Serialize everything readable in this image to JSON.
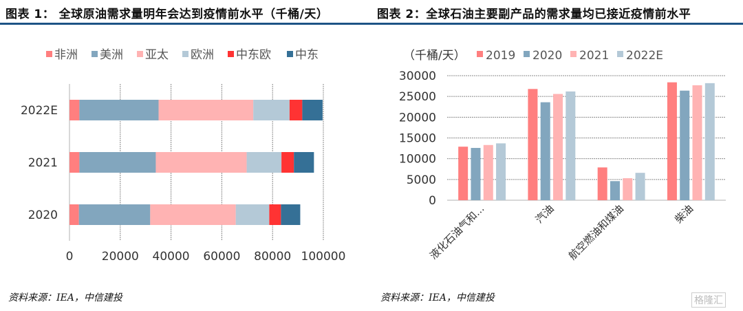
{
  "header": {
    "left_title": "图表 1： 全球原油需求量明年会达到疫情前水平（千桶/天）",
    "right_title": "图表 2：全球石油主要副产品的需求量均已接近疫情前水平"
  },
  "footer": {
    "left_source": "资料来源：IEA，中信建投",
    "right_source": "资料来源：IEA，中信建投",
    "watermark": "格隆汇"
  },
  "chart_data": [
    {
      "type": "bar",
      "orientation": "horizontal",
      "stacked": true,
      "categories": [
        "2022E",
        "2021",
        "2020"
      ],
      "xlim": [
        0,
        100000
      ],
      "x_ticks": [
        "0",
        "20000",
        "40000",
        "60000",
        "80000",
        "100000"
      ],
      "grid": "vertical",
      "legend_position": "top",
      "series": [
        {
          "name": "非洲",
          "color": "#ff7f7f",
          "values": [
            3900,
            3900,
            3700
          ]
        },
        {
          "name": "美洲",
          "color": "#82a6be",
          "values": [
            31200,
            30100,
            28100
          ]
        },
        {
          "name": "亚太",
          "color": "#ffb3b3",
          "values": [
            37300,
            35800,
            33700
          ]
        },
        {
          "name": "欧洲",
          "color": "#b4c9d7",
          "values": [
            14300,
            13700,
            13200
          ]
        },
        {
          "name": "中东欧",
          "color": "#ff3333",
          "values": [
            5000,
            4900,
            4600
          ]
        },
        {
          "name": "中东",
          "color": "#357096",
          "values": [
            8000,
            7900,
            7600
          ]
        }
      ]
    },
    {
      "type": "bar",
      "categories": [
        "液化石油气和...",
        "汽油",
        "航空燃油和煤油",
        "柴油"
      ],
      "ylabel": "（千桶/天）",
      "ylim": [
        0,
        30000
      ],
      "y_ticks": [
        "0",
        "5000",
        "10000",
        "15000",
        "20000",
        "25000",
        "30000"
      ],
      "grid": "horizontal",
      "legend_position": "top",
      "series": [
        {
          "name": "2019",
          "color": "#ff7f7f",
          "values": [
            12900,
            26800,
            7900,
            28400
          ]
        },
        {
          "name": "2020",
          "color": "#82a6be",
          "values": [
            12600,
            23600,
            4600,
            26400
          ]
        },
        {
          "name": "2021",
          "color": "#ffb3b3",
          "values": [
            13300,
            25600,
            5300,
            27700
          ]
        },
        {
          "name": "2022E",
          "color": "#b4c9d7",
          "values": [
            13700,
            26200,
            6600,
            28200
          ]
        }
      ]
    }
  ]
}
